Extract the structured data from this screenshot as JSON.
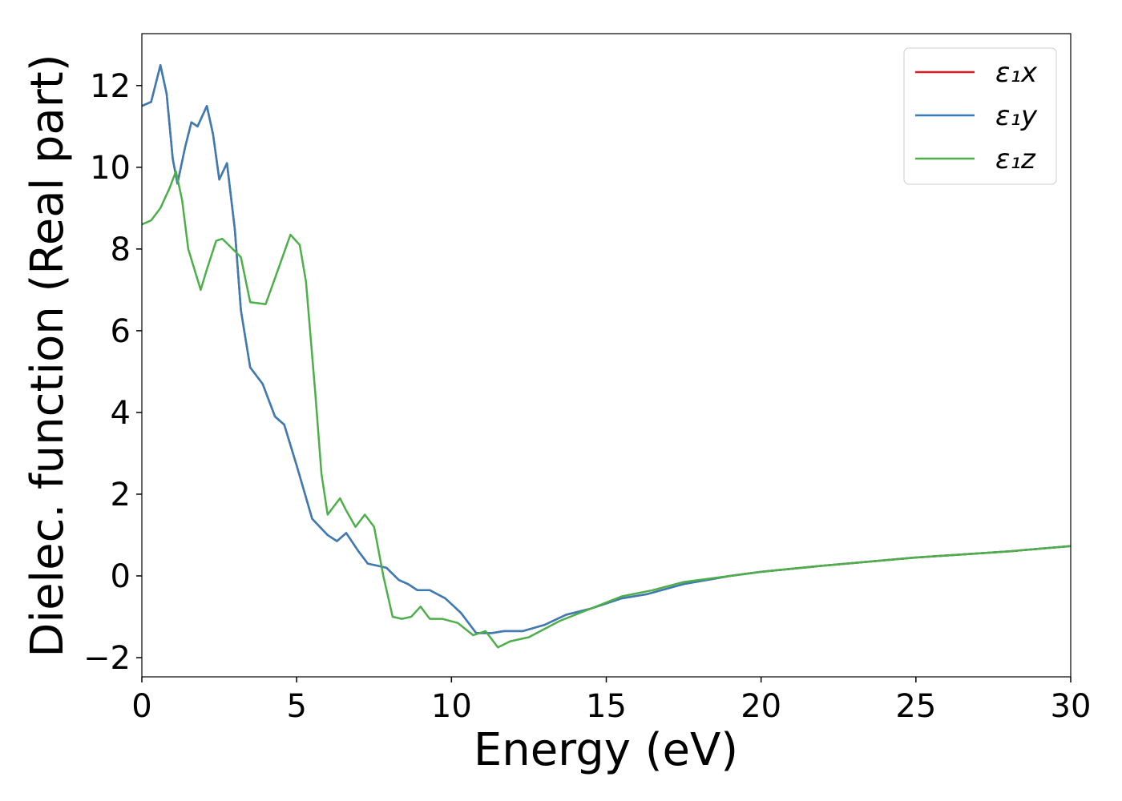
{
  "chart_data": {
    "type": "line",
    "xlabel": "Energy (eV)",
    "ylabel": "Dielec. function (Real part)",
    "xlim": [
      0,
      30
    ],
    "ylim": [
      -2.47,
      13.27
    ],
    "xticks": [
      0,
      5,
      10,
      15,
      20,
      25,
      30
    ],
    "yticks": [
      {
        "value": -2,
        "label": "−2"
      },
      0,
      2,
      4,
      6,
      8,
      10,
      12
    ],
    "legend": "upper right",
    "series": [
      {
        "name": "ε₁x",
        "color": "#e41a1c",
        "x": [
          0,
          0.3,
          0.6,
          0.8,
          1.0,
          1.15,
          1.4,
          1.6,
          1.8,
          2.1,
          2.3,
          2.5,
          2.75,
          3.0,
          3.2,
          3.5,
          3.9,
          4.3,
          4.6,
          5.0,
          5.5,
          6.0,
          6.3,
          6.6,
          7.0,
          7.3,
          7.6,
          7.9,
          8.3,
          8.6,
          8.9,
          9.3,
          9.8,
          10.3,
          10.8,
          11.3,
          11.7,
          12.3,
          13,
          13.7,
          14.5,
          15.5,
          16.3,
          17.5,
          19,
          20,
          22,
          25,
          28,
          30
        ],
        "values": [
          11.5,
          11.6,
          12.5,
          11.8,
          10.2,
          9.6,
          10.5,
          11.1,
          11.0,
          11.5,
          10.8,
          9.7,
          10.1,
          8.5,
          6.5,
          5.1,
          4.7,
          3.9,
          3.7,
          2.7,
          1.4,
          1.0,
          0.85,
          1.05,
          0.6,
          0.3,
          0.25,
          0.2,
          -0.1,
          -0.2,
          -0.35,
          -0.35,
          -0.55,
          -0.9,
          -1.4,
          -1.4,
          -1.35,
          -1.35,
          -1.2,
          -0.95,
          -0.8,
          -0.55,
          -0.45,
          -0.2,
          0.0,
          0.1,
          0.25,
          0.45,
          0.6,
          0.73
        ]
      },
      {
        "name": "ε₁y",
        "color": "#377eb8",
        "x": [
          0,
          0.3,
          0.6,
          0.8,
          1.0,
          1.15,
          1.4,
          1.6,
          1.8,
          2.1,
          2.3,
          2.5,
          2.75,
          3.0,
          3.2,
          3.5,
          3.9,
          4.3,
          4.6,
          5.0,
          5.5,
          6.0,
          6.3,
          6.6,
          7.0,
          7.3,
          7.6,
          7.9,
          8.3,
          8.6,
          8.9,
          9.3,
          9.8,
          10.3,
          10.8,
          11.3,
          11.7,
          12.3,
          13,
          13.7,
          14.5,
          15.5,
          16.3,
          17.5,
          19,
          20,
          22,
          25,
          28,
          30
        ],
        "values": [
          11.5,
          11.6,
          12.5,
          11.8,
          10.2,
          9.6,
          10.5,
          11.1,
          11.0,
          11.5,
          10.8,
          9.7,
          10.1,
          8.5,
          6.5,
          5.1,
          4.7,
          3.9,
          3.7,
          2.7,
          1.4,
          1.0,
          0.85,
          1.05,
          0.6,
          0.3,
          0.25,
          0.2,
          -0.1,
          -0.2,
          -0.35,
          -0.35,
          -0.55,
          -0.9,
          -1.4,
          -1.4,
          -1.35,
          -1.35,
          -1.2,
          -0.95,
          -0.8,
          -0.55,
          -0.45,
          -0.2,
          0.0,
          0.1,
          0.25,
          0.45,
          0.6,
          0.73
        ]
      },
      {
        "name": "ε₁z",
        "color": "#4daf4a",
        "x": [
          0,
          0.3,
          0.6,
          0.9,
          1.1,
          1.3,
          1.5,
          1.9,
          2.1,
          2.4,
          2.6,
          3.0,
          3.2,
          3.5,
          4.0,
          4.4,
          4.8,
          5.1,
          5.3,
          5.6,
          5.8,
          6.0,
          6.2,
          6.4,
          6.6,
          6.9,
          7.2,
          7.5,
          7.8,
          8.1,
          8.4,
          8.7,
          9.0,
          9.3,
          9.7,
          10.2,
          10.7,
          11.1,
          11.5,
          11.9,
          12.5,
          13.5,
          14.5,
          15.5,
          16.5,
          17.5,
          19,
          20,
          22,
          25,
          28,
          30
        ],
        "values": [
          8.6,
          8.7,
          9.0,
          9.5,
          9.9,
          9.2,
          8.0,
          7.0,
          7.5,
          8.2,
          8.25,
          7.95,
          7.8,
          6.7,
          6.65,
          7.5,
          8.35,
          8.1,
          7.2,
          4.5,
          2.5,
          1.5,
          1.7,
          1.9,
          1.6,
          1.2,
          1.5,
          1.2,
          0,
          -1.0,
          -1.05,
          -1.0,
          -0.75,
          -1.05,
          -1.05,
          -1.15,
          -1.45,
          -1.35,
          -1.75,
          -1.6,
          -1.5,
          -1.1,
          -0.8,
          -0.5,
          -0.35,
          -0.15,
          0.0,
          0.1,
          0.25,
          0.45,
          0.6,
          0.73
        ]
      }
    ]
  }
}
